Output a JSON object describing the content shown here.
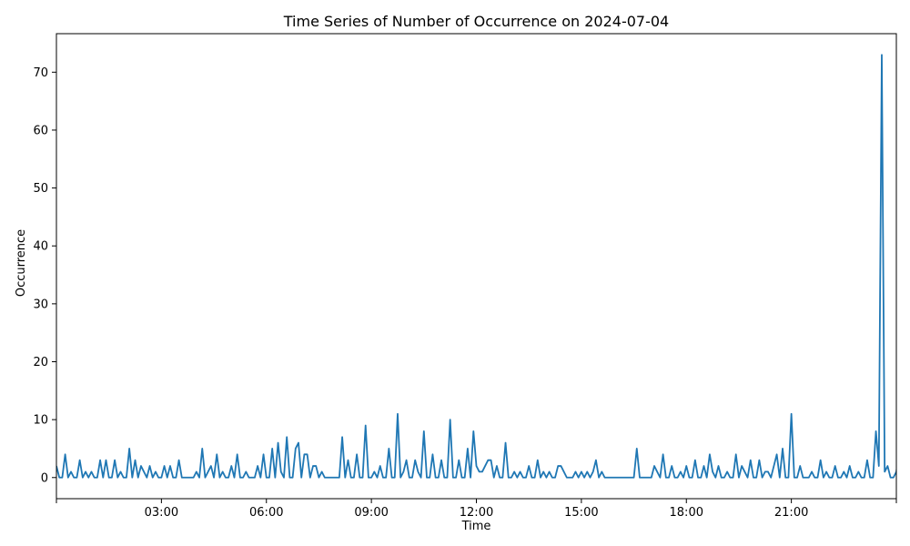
{
  "chart_data": {
    "type": "line",
    "title": "Time Series of Number of Occurrence on 2024-07-04",
    "xlabel": "Time",
    "ylabel": "Occurrence",
    "grid": false,
    "legend": "none",
    "xlim": [
      "00:00",
      "24:00"
    ],
    "ylim": [
      -3.65,
      76.65
    ],
    "x_ticks": [
      "",
      "03:00",
      "06:00",
      "09:00",
      "12:00",
      "15:00",
      "18:00",
      "21:00",
      ""
    ],
    "y_ticks": [
      0,
      10,
      20,
      30,
      40,
      50,
      60,
      70
    ],
    "series_color": "#1f77b4",
    "x_step_minutes": 5,
    "x_start": "00:00",
    "values": [
      2,
      0,
      0,
      4,
      0,
      1,
      0,
      0,
      3,
      0,
      1,
      0,
      1,
      0,
      0,
      3,
      0,
      3,
      0,
      0,
      3,
      0,
      1,
      0,
      0,
      5,
      0,
      3,
      0,
      2,
      1,
      0,
      2,
      0,
      1,
      0,
      0,
      2,
      0,
      2,
      0,
      0,
      3,
      0,
      0,
      0,
      0,
      0,
      1,
      0,
      5,
      0,
      1,
      2,
      0,
      4,
      0,
      1,
      0,
      0,
      2,
      0,
      4,
      0,
      0,
      1,
      0,
      0,
      0,
      2,
      0,
      4,
      0,
      0,
      5,
      0,
      6,
      1,
      0,
      7,
      0,
      0,
      5,
      6,
      0,
      4,
      4,
      0,
      2,
      2,
      0,
      1,
      0,
      0,
      0,
      0,
      0,
      0,
      7,
      0,
      3,
      0,
      0,
      4,
      0,
      0,
      9,
      0,
      0,
      1,
      0,
      2,
      0,
      0,
      5,
      0,
      0,
      11,
      0,
      1,
      3,
      0,
      0,
      3,
      1,
      0,
      8,
      0,
      0,
      4,
      0,
      0,
      3,
      0,
      0,
      10,
      0,
      0,
      3,
      0,
      0,
      5,
      0,
      8,
      2,
      1,
      1,
      2,
      3,
      3,
      0,
      2,
      0,
      0,
      6,
      0,
      0,
      1,
      0,
      1,
      0,
      0,
      2,
      0,
      0,
      3,
      0,
      1,
      0,
      1,
      0,
      0,
      2,
      2,
      1,
      0,
      0,
      0,
      1,
      0,
      1,
      0,
      1,
      0,
      1,
      3,
      0,
      1,
      0,
      0,
      0,
      0,
      0,
      0,
      0,
      0,
      0,
      0,
      0,
      5,
      0,
      0,
      0,
      0,
      0,
      2,
      1,
      0,
      4,
      0,
      0,
      2,
      0,
      0,
      1,
      0,
      2,
      0,
      0,
      3,
      0,
      0,
      2,
      0,
      4,
      1,
      0,
      2,
      0,
      0,
      1,
      0,
      0,
      4,
      0,
      2,
      1,
      0,
      3,
      0,
      0,
      3,
      0,
      1,
      1,
      0,
      2,
      4,
      0,
      5,
      0,
      0,
      11,
      0,
      0,
      2,
      0,
      0,
      0,
      1,
      0,
      0,
      3,
      0,
      1,
      0,
      0,
      2,
      0,
      0,
      1,
      0,
      2,
      0,
      0,
      1,
      0,
      0,
      3,
      0,
      0,
      8,
      2,
      73,
      1,
      2,
      0,
      0,
      1,
      5,
      1
    ]
  }
}
